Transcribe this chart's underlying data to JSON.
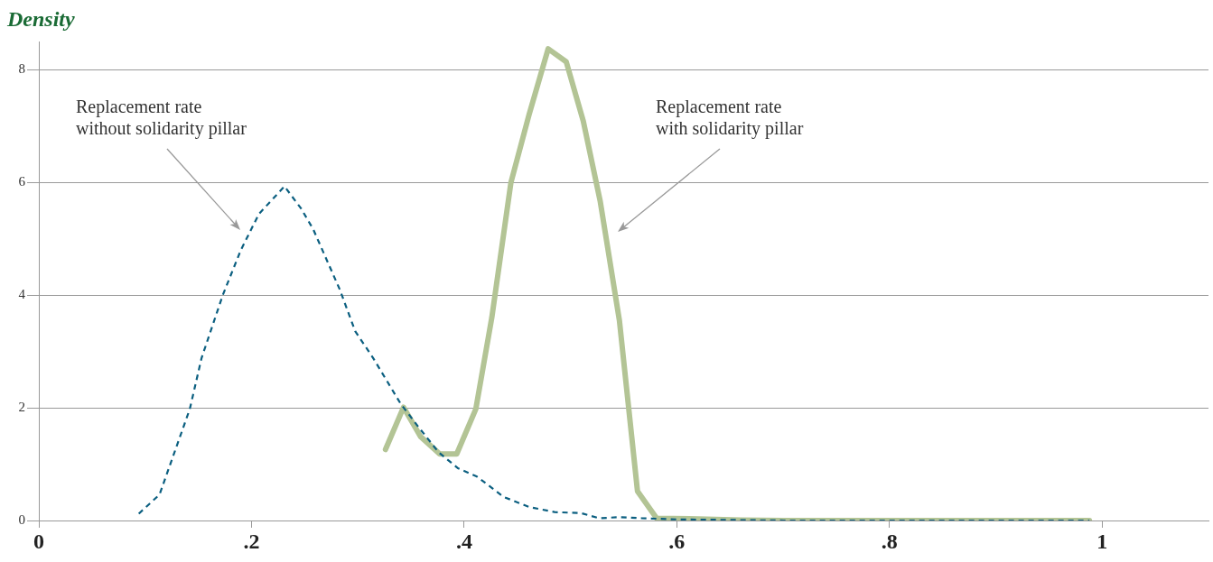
{
  "chart_data": {
    "type": "line",
    "ylabel": "Density",
    "xlim": [
      0,
      1.1
    ],
    "ylim": [
      0,
      8.5
    ],
    "xticks": [
      0,
      {
        "value": 0.2,
        "label": ".2"
      },
      {
        "value": 0.4,
        "label": ".4"
      },
      {
        "value": 0.6,
        "label": ".6"
      },
      {
        "value": 0.8,
        "label": ".8"
      },
      1
    ],
    "yticks": [
      0,
      2,
      4,
      6,
      8
    ],
    "grid": "y",
    "legend": false,
    "marker": "none",
    "series": [
      {
        "color": "#0b5f80",
        "line_style": "dashed",
        "x": [
          0.094,
          0.1135,
          0.142,
          0.153,
          0.173,
          0.19,
          0.207,
          0.231,
          0.2465,
          0.258,
          0.283,
          0.2975,
          0.3145,
          0.34,
          0.357,
          0.376,
          0.394,
          0.412,
          0.437,
          0.461,
          0.485,
          0.51,
          0.527,
          0.546,
          0.567,
          0.6,
          0.65,
          0.7,
          0.8,
          0.9,
          0.988
        ],
        "values": [
          0.12,
          0.46,
          1.98,
          2.88,
          4.0,
          4.8,
          5.44,
          5.93,
          5.54,
          5.17,
          4.1,
          3.36,
          2.88,
          2.08,
          1.66,
          1.21,
          0.93,
          0.78,
          0.42,
          0.24,
          0.15,
          0.13,
          0.04,
          0.06,
          0.04,
          0.02,
          0.01,
          0,
          0,
          0,
          0
        ]
      },
      {
        "color": "#b3c495",
        "line_style": "solid",
        "x": [
          0.326,
          0.343,
          0.359,
          0.377,
          0.393,
          0.411,
          0.426,
          0.444,
          0.461,
          0.479,
          0.496,
          0.512,
          0.528,
          0.546,
          0.563,
          0.581,
          0.62,
          0.66,
          0.7,
          0.8,
          0.9,
          0.988
        ],
        "values": [
          1.26,
          2.01,
          1.49,
          1.18,
          1.18,
          1.98,
          3.6,
          6.0,
          7.2,
          8.37,
          8.14,
          7.09,
          5.66,
          3.55,
          0.52,
          0.04,
          0.03,
          0.01,
          0,
          0,
          0,
          0
        ]
      }
    ],
    "annotations": [
      "Replacement rate\nwithout solidarity pillar",
      "Replacement rate\nwith solidarity pillar"
    ]
  }
}
